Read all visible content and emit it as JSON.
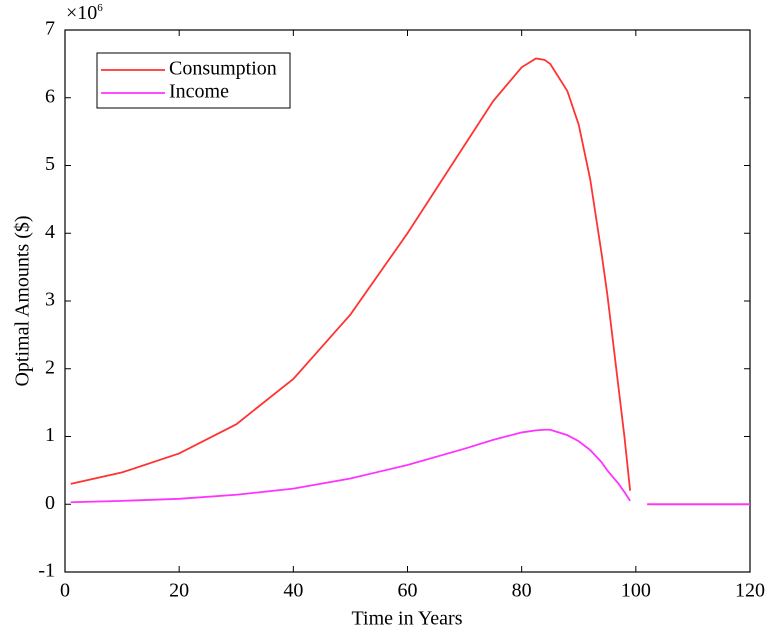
{
  "chart_data": {
    "type": "line",
    "x_label": "Time in Years",
    "y_label": "Optimal Amounts ($)",
    "y_multiplier": {
      "base": "×10",
      "exponent": "6"
    },
    "x": [
      1,
      10,
      20,
      30,
      40,
      50,
      60,
      70,
      75,
      80,
      82.5,
      84,
      85,
      88,
      90,
      92,
      94,
      95,
      96,
      97,
      98,
      99,
      100,
      102,
      110,
      120
    ],
    "series": [
      {
        "name": "Consumption",
        "color": "#ff3333",
        "values": [
          0.3,
          0.47,
          0.75,
          1.18,
          1.85,
          2.8,
          4.0,
          5.3,
          5.95,
          6.45,
          6.58,
          6.56,
          6.5,
          6.1,
          5.6,
          4.8,
          3.7,
          3.1,
          2.4,
          1.7,
          1.0,
          0.2,
          null,
          0,
          0,
          0
        ]
      },
      {
        "name": "Income",
        "color": "#ff33ff",
        "values": [
          0.03,
          0.05,
          0.08,
          0.14,
          0.23,
          0.38,
          0.58,
          0.82,
          0.95,
          1.06,
          1.09,
          1.1,
          1.1,
          1.02,
          0.93,
          0.8,
          0.62,
          0.5,
          0.4,
          0.3,
          0.18,
          0.05,
          null,
          0,
          0,
          0
        ]
      }
    ],
    "xlim": [
      0,
      120
    ],
    "xticks": [
      0,
      20,
      40,
      60,
      80,
      100,
      120
    ],
    "ylim": [
      -1,
      7
    ],
    "yticks": [
      -1,
      0,
      1,
      2,
      3,
      4,
      5,
      6,
      7
    ],
    "grid": false,
    "legend": "upper left"
  }
}
